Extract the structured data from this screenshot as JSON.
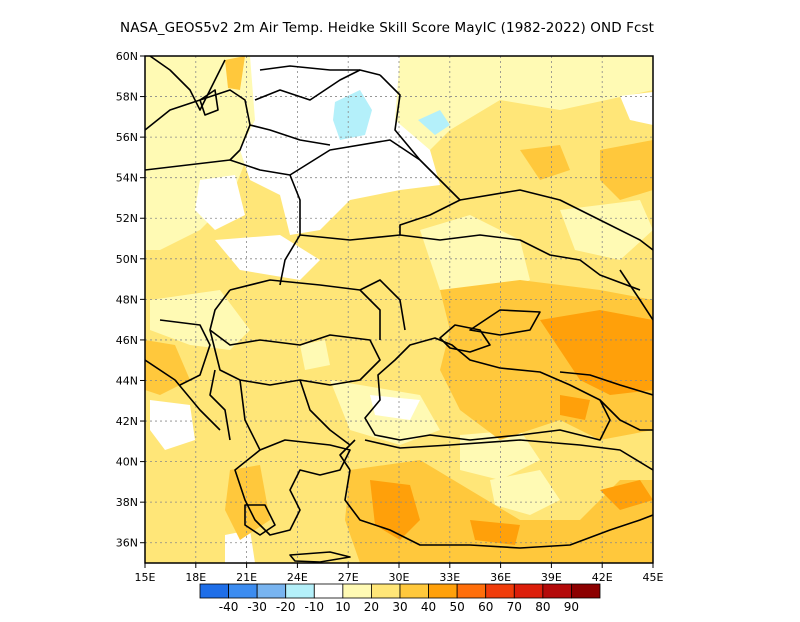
{
  "title": "NASA_GEOS5v2  2m Air Temp. Heidke Skill Score MayIC (1982-2022) OND Fcst",
  "map": {
    "lon_range": [
      15,
      45
    ],
    "lat_range": [
      35,
      60
    ],
    "lon_ticks": [
      "15E",
      "18E",
      "21E",
      "24E",
      "27E",
      "30E",
      "33E",
      "36E",
      "39E",
      "42E",
      "45E"
    ],
    "lat_ticks": [
      "36N",
      "38N",
      "40N",
      "42N",
      "44N",
      "46N",
      "48N",
      "50N",
      "52N",
      "54N",
      "56N",
      "58N",
      "60N"
    ],
    "gridlines": true
  },
  "colorbar": {
    "colors": [
      "#1e6ee8",
      "#3c8cf0",
      "#78b4f0",
      "#b4f0fa",
      "#ffffff",
      "#fffab4",
      "#ffe678",
      "#ffc83c",
      "#ffa00a",
      "#ff6e0a",
      "#f03c0a",
      "#dc1e0a",
      "#b40a0a",
      "#8c0000"
    ],
    "labels": [
      "-40",
      "-30",
      "-20",
      "-10",
      "10",
      "20",
      "30",
      "40",
      "50",
      "60",
      "70",
      "80",
      "90"
    ]
  }
}
